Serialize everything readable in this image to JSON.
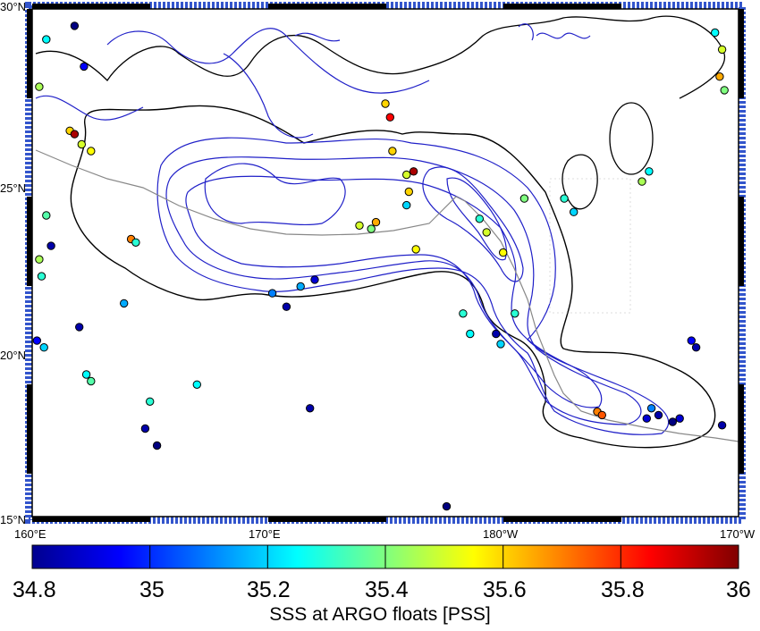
{
  "map": {
    "lat_labels": [
      "30°N",
      "25°N",
      "20°N",
      "15°N"
    ],
    "lon_labels": [
      "160°E",
      "170°E",
      "180°W",
      "170°W"
    ]
  },
  "colorbar": {
    "title": "SSS at ARGO floats [PSS]",
    "tick_labels": [
      "34.8",
      "35",
      "35.2",
      "35.4",
      "35.6",
      "35.8",
      "36"
    ],
    "range": [
      34.8,
      36
    ],
    "colormap": "jet"
  },
  "colors": {
    "contour_salinity": "#2020c8",
    "contour_outer": "#000000",
    "track": "#808080",
    "frame": "#000000"
  },
  "floats": [
    {
      "lon": 160.6,
      "lat": 29.1,
      "sss": 35.25
    },
    {
      "lon": 161.8,
      "lat": 29.5,
      "sss": 34.8
    },
    {
      "lon": 162.2,
      "lat": 28.3,
      "sss": 34.95
    },
    {
      "lon": 160.3,
      "lat": 27.7,
      "sss": 35.45
    },
    {
      "lon": 161.6,
      "lat": 26.4,
      "sss": 35.6
    },
    {
      "lon": 162.1,
      "lat": 26.0,
      "sss": 35.5
    },
    {
      "lon": 161.8,
      "lat": 26.3,
      "sss": 35.95
    },
    {
      "lon": 162.5,
      "lat": 25.8,
      "sss": 35.55
    },
    {
      "lon": 160.6,
      "lat": 23.9,
      "sss": 35.35
    },
    {
      "lon": 160.3,
      "lat": 22.6,
      "sss": 35.45
    },
    {
      "lon": 160.8,
      "lat": 23.0,
      "sss": 34.85
    },
    {
      "lon": 160.4,
      "lat": 22.1,
      "sss": 35.3
    },
    {
      "lon": 160.2,
      "lat": 20.2,
      "sss": 34.95
    },
    {
      "lon": 160.5,
      "lat": 20.0,
      "sss": 35.2
    },
    {
      "lon": 162.3,
      "lat": 19.2,
      "sss": 35.25
    },
    {
      "lon": 162.5,
      "lat": 19.0,
      "sss": 35.35
    },
    {
      "lon": 162.0,
      "lat": 20.6,
      "sss": 34.85
    },
    {
      "lon": 164.2,
      "lat": 23.2,
      "sss": 35.7
    },
    {
      "lon": 164.4,
      "lat": 23.1,
      "sss": 35.3
    },
    {
      "lon": 163.9,
      "lat": 21.3,
      "sss": 35.15
    },
    {
      "lon": 165.0,
      "lat": 18.4,
      "sss": 35.3
    },
    {
      "lon": 164.8,
      "lat": 17.6,
      "sss": 34.85
    },
    {
      "lon": 165.3,
      "lat": 17.1,
      "sss": 34.8
    },
    {
      "lon": 167.0,
      "lat": 18.9,
      "sss": 35.25
    },
    {
      "lon": 170.2,
      "lat": 21.6,
      "sss": 35.1
    },
    {
      "lon": 171.4,
      "lat": 21.8,
      "sss": 35.15
    },
    {
      "lon": 170.8,
      "lat": 21.2,
      "sss": 34.85
    },
    {
      "lon": 172.0,
      "lat": 22.0,
      "sss": 34.9
    },
    {
      "lon": 171.8,
      "lat": 18.2,
      "sss": 34.85
    },
    {
      "lon": 173.9,
      "lat": 23.6,
      "sss": 35.5
    },
    {
      "lon": 174.6,
      "lat": 23.7,
      "sss": 35.65
    },
    {
      "lon": 174.4,
      "lat": 23.5,
      "sss": 35.4
    },
    {
      "lon": 175.3,
      "lat": 25.8,
      "sss": 35.6
    },
    {
      "lon": 175.9,
      "lat": 25.1,
      "sss": 35.5
    },
    {
      "lon": 176.2,
      "lat": 25.2,
      "sss": 35.95
    },
    {
      "lon": 176.0,
      "lat": 24.6,
      "sss": 35.6
    },
    {
      "lon": 175.9,
      "lat": 24.2,
      "sss": 35.2
    },
    {
      "lon": 176.3,
      "lat": 22.9,
      "sss": 35.55
    },
    {
      "lon": 175.0,
      "lat": 27.2,
      "sss": 35.6
    },
    {
      "lon": 175.2,
      "lat": 26.8,
      "sss": 35.85
    },
    {
      "lon": 179.0,
      "lat": 23.8,
      "sss": 35.3
    },
    {
      "lon": 179.3,
      "lat": 23.4,
      "sss": 35.5
    },
    {
      "lon": 178.3,
      "lat": 21.0,
      "sss": 35.3
    },
    {
      "lon": 178.6,
      "lat": 20.4,
      "sss": 35.25
    },
    {
      "lon": 179.9,
      "lat": 20.1,
      "sss": 35.2
    },
    {
      "lon": 180.5,
      "lat": 21.0,
      "sss": 35.3
    },
    {
      "lon": 180.9,
      "lat": 24.4,
      "sss": 35.4
    },
    {
      "lon": 180.0,
      "lat": 22.8,
      "sss": 35.55
    },
    {
      "lon": 186.1,
      "lat": 17.9,
      "sss": 34.9
    },
    {
      "lon": 186.3,
      "lat": 18.2,
      "sss": 35.1
    },
    {
      "lon": 186.6,
      "lat": 18.0,
      "sss": 34.85
    },
    {
      "lon": 187.2,
      "lat": 17.8,
      "sss": 34.8
    },
    {
      "lon": 187.5,
      "lat": 17.9,
      "sss": 34.9
    },
    {
      "lon": 188.0,
      "lat": 20.2,
      "sss": 34.95
    },
    {
      "lon": 188.2,
      "lat": 20.0,
      "sss": 34.85
    },
    {
      "lon": 189.3,
      "lat": 17.7,
      "sss": 34.85
    },
    {
      "lon": 184.0,
      "lat": 18.1,
      "sss": 35.7
    },
    {
      "lon": 184.2,
      "lat": 18.0,
      "sss": 35.75
    },
    {
      "lon": 182.6,
      "lat": 24.4,
      "sss": 35.3
    },
    {
      "lon": 183.0,
      "lat": 24.0,
      "sss": 35.2
    },
    {
      "lon": 189.2,
      "lat": 28.0,
      "sss": 35.65
    },
    {
      "lon": 189.4,
      "lat": 27.6,
      "sss": 35.4
    },
    {
      "lon": 189.0,
      "lat": 29.3,
      "sss": 35.25
    },
    {
      "lon": 189.3,
      "lat": 28.8,
      "sss": 35.5
    },
    {
      "lon": 185.9,
      "lat": 24.9,
      "sss": 35.45
    },
    {
      "lon": 186.2,
      "lat": 25.2,
      "sss": 35.25
    },
    {
      "lon": 179.7,
      "lat": 20.4,
      "sss": 34.85
    },
    {
      "lon": 177.6,
      "lat": 15.3,
      "sss": 34.8
    }
  ]
}
